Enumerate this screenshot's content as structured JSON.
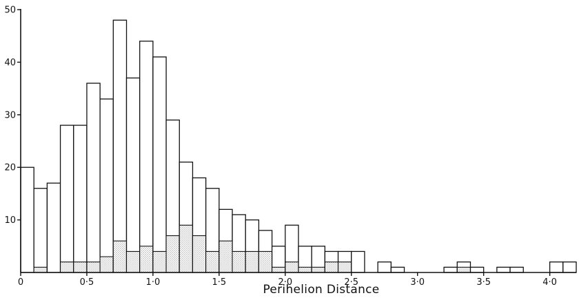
{
  "chart_data": {
    "type": "bar",
    "subtype": "histogram",
    "title": "",
    "xlabel": "Perihelion Distance",
    "ylabel": "",
    "bin_width": 0.1,
    "xlim": [
      0,
      4.2
    ],
    "ylim": [
      0,
      50
    ],
    "x_ticks": [
      0,
      0.5,
      1.0,
      1.5,
      2.0,
      2.5,
      3.0,
      3.5,
      4.0
    ],
    "x_tick_labels": [
      "0",
      "0·5",
      "1·0",
      "1·5",
      "2·0",
      "2·5",
      "3·0",
      "3·5",
      "4·0"
    ],
    "y_ticks": [
      10,
      20,
      30,
      40,
      50
    ],
    "y_tick_labels": [
      "10",
      "20",
      "30",
      "40",
      "50"
    ],
    "bin_starts": [
      0.0,
      0.1,
      0.2,
      0.3,
      0.4,
      0.5,
      0.6,
      0.7,
      0.8,
      0.9,
      1.0,
      1.1,
      1.2,
      1.3,
      1.4,
      1.5,
      1.6,
      1.7,
      1.8,
      1.9,
      2.0,
      2.1,
      2.2,
      2.3,
      2.4,
      2.5,
      2.6,
      2.7,
      2.8,
      2.9,
      3.0,
      3.1,
      3.2,
      3.3,
      3.4,
      3.5,
      3.6,
      3.7,
      3.8,
      3.9,
      4.0,
      4.1
    ],
    "series": [
      {
        "style": "outline",
        "values": [
          20,
          16,
          17,
          28,
          28,
          36,
          33,
          48,
          37,
          44,
          41,
          29,
          21,
          18,
          16,
          12,
          11,
          10,
          8,
          5,
          9,
          5,
          5,
          4,
          4,
          4,
          0,
          2,
          1,
          0,
          0,
          0,
          1,
          2,
          1,
          0,
          1,
          1,
          0,
          0,
          2,
          2
        ]
      },
      {
        "style": "stippled",
        "values": [
          0,
          1,
          0,
          2,
          2,
          2,
          3,
          6,
          4,
          5,
          4,
          7,
          9,
          7,
          4,
          6,
          4,
          4,
          4,
          1,
          2,
          1,
          1,
          2,
          2,
          0,
          0,
          0,
          0,
          0,
          0,
          0,
          0,
          1,
          0,
          0,
          0,
          0,
          0,
          0,
          0,
          0
        ]
      }
    ],
    "grid": false,
    "legend": "none"
  }
}
